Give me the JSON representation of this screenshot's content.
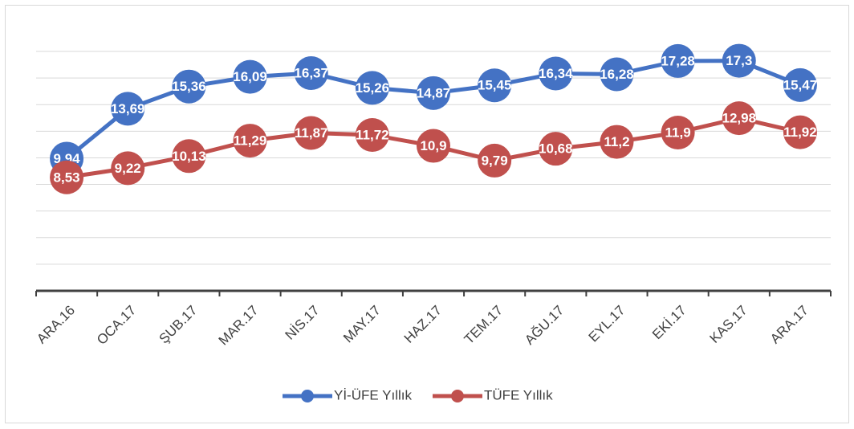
{
  "chart_data": {
    "type": "line",
    "categories": [
      "ARA.16",
      "OCA.17",
      "ŞUB.17",
      "MAR.17",
      "NİS.17",
      "MAY.17",
      "HAZ.17",
      "TEM.17",
      "AĞU.17",
      "EYL.17",
      "EKİ.17",
      "KAS.17",
      "ARA.17"
    ],
    "series": [
      {
        "name": "Yİ-ÜFE Yıllık",
        "color": "#4472c4",
        "values": [
          9.94,
          13.69,
          15.36,
          16.09,
          16.37,
          15.26,
          14.87,
          15.45,
          16.34,
          16.28,
          17.28,
          17.3,
          15.47
        ],
        "value_labels": [
          "9,94",
          "13,69",
          "15,36",
          "16,09",
          "16,37",
          "15,26",
          "14,87",
          "15,45",
          "16,34",
          "16,28",
          "17,28",
          "17,3",
          "15,47"
        ]
      },
      {
        "name": "TÜFE Yıllık",
        "color": "#c0504d",
        "values": [
          8.53,
          9.22,
          10.13,
          11.29,
          11.87,
          11.72,
          10.9,
          9.79,
          10.68,
          11.2,
          11.9,
          12.98,
          11.92
        ],
        "value_labels": [
          "8,53",
          "9,22",
          "10,13",
          "11,29",
          "11,87",
          "11,72",
          "10,9",
          "9,79",
          "10,68",
          "11,2",
          "11,9",
          "12,98",
          "11,92"
        ]
      }
    ],
    "ylim": [
      0,
      18
    ],
    "yticks": [
      0,
      2,
      4,
      6,
      8,
      10,
      12,
      14,
      16,
      18
    ],
    "grid": true,
    "legend": "bottom"
  }
}
